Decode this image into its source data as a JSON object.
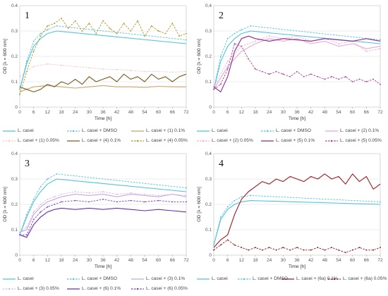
{
  "chart_data": [
    {
      "type": "line",
      "panel_label": "1",
      "xlabel": "Time [h]",
      "ylabel": "OD [λ = 600 nm]",
      "xlim": [
        0,
        72
      ],
      "ylim": [
        0,
        0.4
      ],
      "xticks": [
        "0",
        "6",
        "12",
        "18",
        "24",
        "30",
        "36",
        "42",
        "48",
        "54",
        "60",
        "66",
        "72"
      ],
      "yticks": [
        "0",
        "0.1",
        "0.2",
        "0.3",
        "0.4"
      ],
      "grid": true,
      "legend_position": "bottom",
      "series": [
        {
          "name": "L. casei",
          "color": "#4fc3dd",
          "style": "solid",
          "marker": false,
          "x": [
            0,
            3,
            6,
            9,
            12,
            16,
            72
          ],
          "y": [
            0.07,
            0.17,
            0.24,
            0.27,
            0.29,
            0.3,
            0.25
          ]
        },
        {
          "name": "L. casei + DMSO",
          "color": "#4fc3dd",
          "style": "dashed",
          "marker": true,
          "x": [
            0,
            3,
            6,
            9,
            12,
            16,
            72
          ],
          "y": [
            0.07,
            0.18,
            0.26,
            0.29,
            0.305,
            0.32,
            0.265
          ]
        },
        {
          "name": "L. casei + (1) 0.1%",
          "color": "#c9a26b",
          "style": "solid",
          "marker": false,
          "x": [
            0,
            6,
            12,
            18,
            24,
            30,
            36,
            42,
            48,
            54,
            60,
            66,
            72
          ],
          "y": [
            0.06,
            0.08,
            0.085,
            0.08,
            0.075,
            0.08,
            0.085,
            0.08,
            0.08,
            0.078,
            0.082,
            0.08,
            0.08
          ]
        },
        {
          "name": "L. casei + (1) 0.05%",
          "color": "#f2c9c4",
          "style": "dashed",
          "marker": true,
          "x": [
            0,
            6,
            12,
            18,
            24,
            30,
            36,
            42,
            48,
            54,
            60,
            66,
            72
          ],
          "y": [
            0.12,
            0.16,
            0.17,
            0.165,
            0.16,
            0.155,
            0.15,
            0.148,
            0.145,
            0.14,
            0.14,
            0.138,
            0.14
          ]
        },
        {
          "name": "L. casei + (4) 0.1%",
          "color": "#7a5a1e",
          "style": "solid",
          "marker": false,
          "x": [
            0,
            3,
            6,
            9,
            12,
            15,
            18,
            21,
            24,
            27,
            30,
            33,
            36,
            39,
            42,
            45,
            48,
            51,
            54,
            57,
            60,
            63,
            66,
            69,
            72
          ],
          "y": [
            0.08,
            0.07,
            0.06,
            0.07,
            0.09,
            0.08,
            0.1,
            0.09,
            0.11,
            0.09,
            0.12,
            0.1,
            0.11,
            0.12,
            0.1,
            0.13,
            0.11,
            0.12,
            0.1,
            0.13,
            0.11,
            0.12,
            0.1,
            0.12,
            0.13
          ]
        },
        {
          "name": "L. casei + (4) 0.05%",
          "color": "#b5941c",
          "style": "dashed",
          "marker": true,
          "x": [
            0,
            3,
            6,
            9,
            12,
            15,
            18,
            21,
            24,
            27,
            30,
            33,
            36,
            39,
            42,
            45,
            48,
            51,
            54,
            57,
            60,
            63,
            66,
            69,
            72
          ],
          "y": [
            0.05,
            0.14,
            0.22,
            0.28,
            0.32,
            0.33,
            0.35,
            0.31,
            0.34,
            0.3,
            0.33,
            0.29,
            0.34,
            0.31,
            0.29,
            0.33,
            0.3,
            0.34,
            0.28,
            0.32,
            0.3,
            0.29,
            0.33,
            0.28,
            0.29
          ]
        }
      ]
    },
    {
      "type": "line",
      "panel_label": "2",
      "xlabel": "Time [h]",
      "ylabel": "OD [λ = 600 nm]",
      "xlim": [
        0,
        72
      ],
      "ylim": [
        0,
        0.4
      ],
      "xticks": [
        "0",
        "6",
        "12",
        "18",
        "24",
        "30",
        "36",
        "42",
        "48",
        "54",
        "60",
        "66",
        "72"
      ],
      "yticks": [
        "0",
        "0.1",
        "0.2",
        "0.3",
        "0.4"
      ],
      "grid": true,
      "legend_position": "bottom",
      "series": [
        {
          "name": "L. casei",
          "color": "#4fc3dd",
          "style": "solid",
          "marker": false,
          "x": [
            0,
            3,
            6,
            9,
            12,
            16,
            72
          ],
          "y": [
            0.07,
            0.18,
            0.24,
            0.27,
            0.29,
            0.3,
            0.25
          ]
        },
        {
          "name": "L. casei + DMSO",
          "color": "#4fc3dd",
          "style": "dashed",
          "marker": true,
          "x": [
            0,
            3,
            6,
            9,
            12,
            16,
            72
          ],
          "y": [
            0.07,
            0.2,
            0.27,
            0.29,
            0.305,
            0.32,
            0.265
          ]
        },
        {
          "name": "L. casei + (2) 0.1%",
          "color": "#e6a8d8",
          "style": "solid",
          "marker": false,
          "x": [
            0,
            6,
            12,
            18,
            24,
            30,
            36,
            42,
            48,
            54,
            60,
            66,
            72
          ],
          "y": [
            0.07,
            0.16,
            0.22,
            0.25,
            0.27,
            0.26,
            0.27,
            0.25,
            0.26,
            0.24,
            0.25,
            0.23,
            0.24
          ]
        },
        {
          "name": "L. casei + (2) 0.05%",
          "color": "#f2a9c9",
          "style": "dashed",
          "marker": true,
          "x": [
            0,
            6,
            12,
            18,
            24,
            30,
            36,
            42,
            48,
            54,
            60,
            66,
            72
          ],
          "y": [
            0.08,
            0.18,
            0.24,
            0.26,
            0.28,
            0.27,
            0.28,
            0.26,
            0.27,
            0.25,
            0.26,
            0.22,
            0.23
          ]
        },
        {
          "name": "L. casei + (5) 0.1%",
          "color": "#8e2a8e",
          "style": "solid",
          "marker": false,
          "x": [
            0,
            3,
            6,
            9,
            12,
            15,
            18,
            24,
            30,
            36,
            42,
            48,
            54,
            60,
            66,
            72
          ],
          "y": [
            0.08,
            0.06,
            0.12,
            0.22,
            0.27,
            0.28,
            0.27,
            0.26,
            0.27,
            0.265,
            0.26,
            0.27,
            0.265,
            0.26,
            0.27,
            0.26
          ]
        },
        {
          "name": "L. casei + (5) 0.05%",
          "color": "#b03a9e",
          "style": "dashed",
          "marker": true,
          "x": [
            0,
            3,
            6,
            9,
            12,
            15,
            18,
            21,
            24,
            27,
            30,
            33,
            36,
            39,
            42,
            45,
            48,
            51,
            54,
            57,
            60,
            63,
            66,
            69,
            72
          ],
          "y": [
            0.07,
            0.09,
            0.15,
            0.25,
            0.24,
            0.19,
            0.15,
            0.14,
            0.13,
            0.14,
            0.13,
            0.12,
            0.14,
            0.12,
            0.13,
            0.12,
            0.11,
            0.12,
            0.11,
            0.12,
            0.1,
            0.11,
            0.1,
            0.11,
            0.09
          ]
        }
      ]
    },
    {
      "type": "line",
      "panel_label": "3",
      "xlabel": "Time [h]",
      "ylabel": "OD [λ = 600 nm]",
      "xlim": [
        0,
        72
      ],
      "ylim": [
        0,
        0.4
      ],
      "xticks": [
        "0",
        "6",
        "12",
        "18",
        "24",
        "30",
        "36",
        "42",
        "48",
        "54",
        "60",
        "66",
        "72"
      ],
      "yticks": [
        "0",
        "0.1",
        "0.2",
        "0.3",
        "0.4"
      ],
      "grid": true,
      "legend_position": "bottom",
      "series": [
        {
          "name": "L. casei",
          "color": "#4fc3dd",
          "style": "solid",
          "marker": false,
          "x": [
            0,
            3,
            6,
            9,
            12,
            16,
            72
          ],
          "y": [
            0.08,
            0.15,
            0.21,
            0.25,
            0.28,
            0.3,
            0.25
          ]
        },
        {
          "name": "L. casei + DMSO",
          "color": "#4fc3dd",
          "style": "dashed",
          "marker": true,
          "x": [
            0,
            3,
            6,
            9,
            12,
            16,
            72
          ],
          "y": [
            0.08,
            0.16,
            0.22,
            0.27,
            0.3,
            0.32,
            0.265
          ]
        },
        {
          "name": "L. casei + (3) 0.1%",
          "color": "#c7a6dc",
          "style": "solid",
          "marker": false,
          "x": [
            0,
            3,
            6,
            9,
            12,
            15,
            18,
            24,
            30,
            36,
            42,
            48,
            54,
            60,
            66,
            72
          ],
          "y": [
            0.09,
            0.1,
            0.16,
            0.19,
            0.21,
            0.22,
            0.23,
            0.24,
            0.235,
            0.24,
            0.23,
            0.24,
            0.235,
            0.23,
            0.24,
            0.23
          ]
        },
        {
          "name": "L. casei + (3) 0.05%",
          "color": "#d9b8ea",
          "style": "dashed",
          "marker": true,
          "x": [
            0,
            3,
            6,
            9,
            12,
            15,
            18,
            24,
            30,
            36,
            42,
            48,
            54,
            60,
            66,
            72
          ],
          "y": [
            0.09,
            0.11,
            0.17,
            0.2,
            0.22,
            0.23,
            0.24,
            0.25,
            0.245,
            0.25,
            0.24,
            0.245,
            0.24,
            0.235,
            0.24,
            0.235
          ]
        },
        {
          "name": "L. casei + (6) 0.1%",
          "color": "#6b2fb0",
          "style": "solid",
          "marker": false,
          "x": [
            0,
            3,
            6,
            9,
            12,
            15,
            18,
            24,
            30,
            36,
            42,
            48,
            54,
            60,
            66,
            72
          ],
          "y": [
            0.08,
            0.07,
            0.12,
            0.15,
            0.17,
            0.18,
            0.185,
            0.18,
            0.185,
            0.18,
            0.185,
            0.18,
            0.175,
            0.18,
            0.175,
            0.17
          ]
        },
        {
          "name": "L. casei + (6) 0.05%",
          "color": "#7d3fc0",
          "style": "dashed",
          "marker": true,
          "x": [
            0,
            3,
            6,
            9,
            12,
            15,
            18,
            24,
            30,
            36,
            42,
            48,
            54,
            60,
            66,
            72
          ],
          "y": [
            0.08,
            0.08,
            0.14,
            0.17,
            0.19,
            0.2,
            0.21,
            0.215,
            0.21,
            0.22,
            0.21,
            0.215,
            0.21,
            0.215,
            0.21,
            0.21
          ]
        }
      ]
    },
    {
      "type": "line",
      "panel_label": "4",
      "xlabel": "Time [h]",
      "ylabel": "OD [λ = 600 nm]",
      "xlim": [
        0,
        72
      ],
      "ylim": [
        0,
        0.4
      ],
      "xticks": [
        "0",
        "6",
        "12",
        "18",
        "24",
        "30",
        "36",
        "42",
        "48",
        "54",
        "60",
        "66",
        "72"
      ],
      "yticks": [
        "0",
        "0.1",
        "0.2",
        "0.3",
        "0.4"
      ],
      "grid": true,
      "legend_position": "bottom",
      "series": [
        {
          "name": "L. casei",
          "color": "#4fc3dd",
          "style": "solid",
          "marker": false,
          "x": [
            0,
            3,
            6,
            9,
            12,
            16,
            72
          ],
          "y": [
            0.04,
            0.14,
            0.18,
            0.2,
            0.21,
            0.215,
            0.2
          ]
        },
        {
          "name": "L. casei + DMSO",
          "color": "#4fc3dd",
          "style": "dashed",
          "marker": true,
          "x": [
            0,
            3,
            6,
            9,
            12,
            16,
            72
          ],
          "y": [
            0.04,
            0.15,
            0.19,
            0.215,
            0.23,
            0.235,
            0.21
          ]
        },
        {
          "name": "L. casei + (6a) 0.1%",
          "color": "#9e1b22",
          "style": "solid",
          "marker": false,
          "x": [
            0,
            3,
            6,
            9,
            12,
            15,
            18,
            21,
            24,
            27,
            30,
            33,
            36,
            39,
            42,
            45,
            48,
            51,
            54,
            57,
            60,
            63,
            66,
            69,
            72
          ],
          "y": [
            0.03,
            0.06,
            0.08,
            0.16,
            0.22,
            0.25,
            0.27,
            0.29,
            0.28,
            0.3,
            0.29,
            0.31,
            0.3,
            0.29,
            0.31,
            0.3,
            0.32,
            0.3,
            0.31,
            0.28,
            0.32,
            0.29,
            0.31,
            0.26,
            0.28
          ]
        },
        {
          "name": "L. casei + (6a) 0.05%",
          "color": "#8e1a1a",
          "style": "dashed",
          "marker": true,
          "x": [
            0,
            3,
            6,
            9,
            12,
            15,
            18,
            21,
            24,
            27,
            30,
            33,
            36,
            39,
            42,
            45,
            48,
            51,
            54,
            57,
            60,
            63,
            66,
            69,
            72
          ],
          "y": [
            0.02,
            0.04,
            0.06,
            0.04,
            0.03,
            0.02,
            0.03,
            0.02,
            0.03,
            0.02,
            0.03,
            0.02,
            0.03,
            0.02,
            0.02,
            0.03,
            0.02,
            0.03,
            0.02,
            0.01,
            0.02,
            0.03,
            0.02,
            0.02,
            0.03
          ]
        }
      ]
    }
  ]
}
